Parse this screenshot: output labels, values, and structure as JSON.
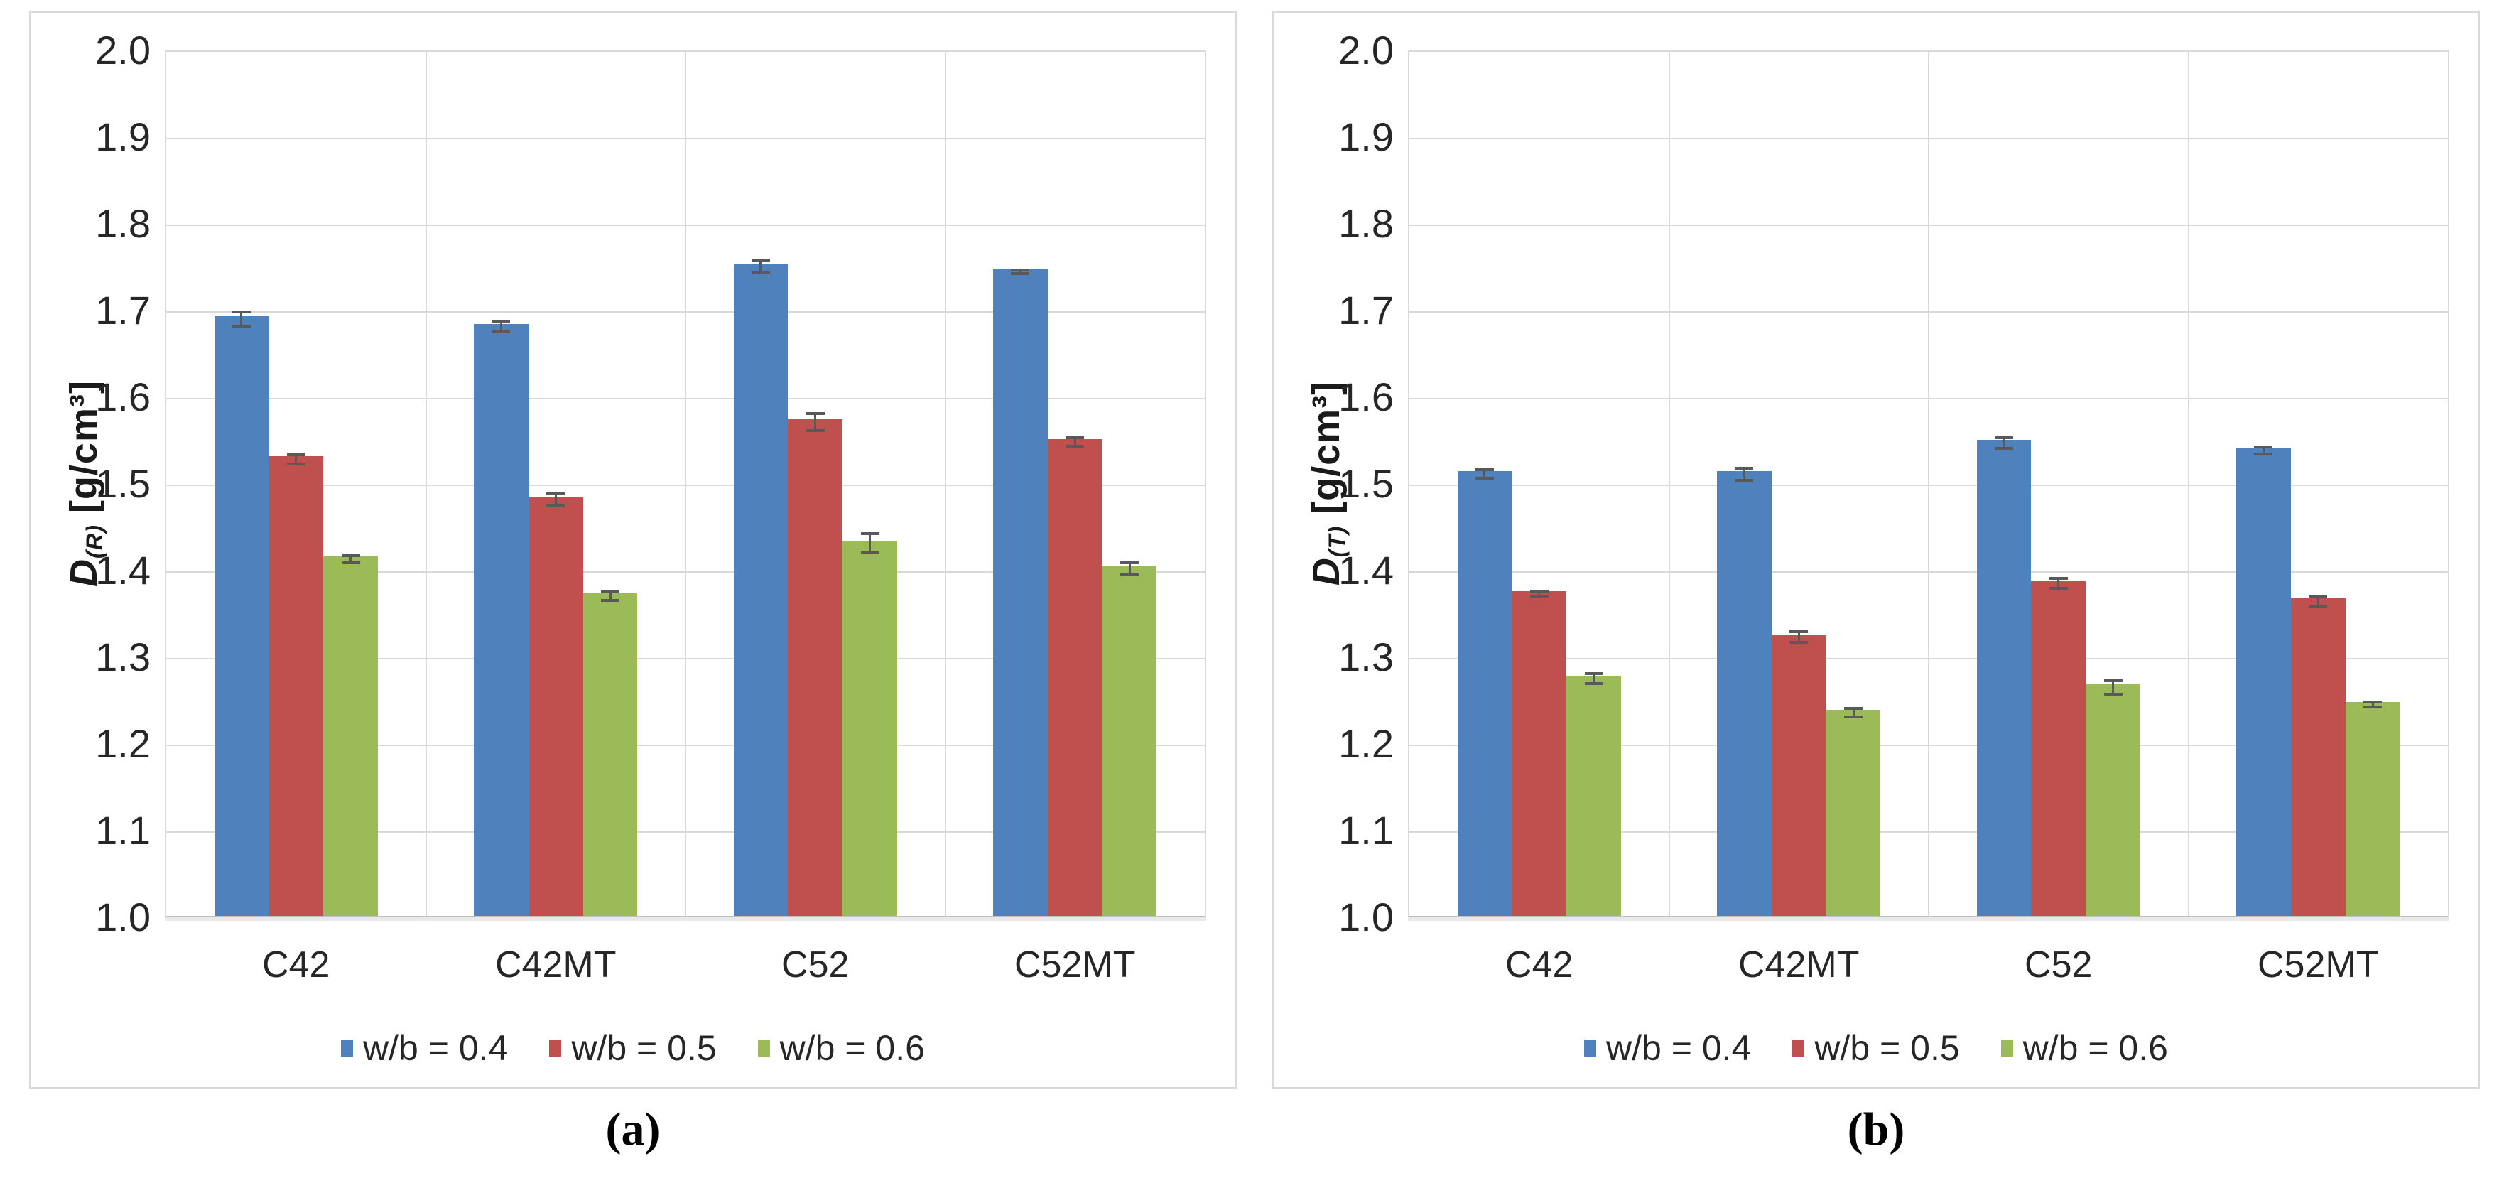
{
  "style": {
    "series_colors": [
      "#4F81BD",
      "#C0504D",
      "#9BBB59"
    ],
    "error_bar_color": "#595959",
    "grid_color": "#D9D9D9",
    "axis_color": "#BFBFBF",
    "text_color": "#262626",
    "panel_border_color": "#D9D9D9",
    "background": "#FFFFFF"
  },
  "chart_data": [
    {
      "type": "bar",
      "panel_caption": "(a)",
      "title": "",
      "xlabel": "",
      "ylabel_text": "D(R) [g/cm³]",
      "ylabel": {
        "symbol": "D",
        "subscript": "(R)",
        "units": "[g/cm³]"
      },
      "ylim": [
        1.0,
        2.0
      ],
      "y_tick_step": 0.1,
      "y_ticks": [
        "2.0",
        "1.9",
        "1.8",
        "1.7",
        "1.6",
        "1.5",
        "1.4",
        "1.3",
        "1.2",
        "1.1",
        "1.0"
      ],
      "grid": true,
      "legend_position": "bottom",
      "categories": [
        "C42",
        "C42MT",
        "C52",
        "C52MT"
      ],
      "series": [
        {
          "name": "w/b = 0.4",
          "color": "#4F81BD",
          "values": [
            1.692,
            1.683,
            1.752,
            1.746
          ],
          "errors": [
            0.008,
            0.006,
            0.007,
            0.002
          ]
        },
        {
          "name": "w/b = 0.5",
          "color": "#C0504D",
          "values": [
            1.53,
            1.483,
            1.573,
            1.55
          ],
          "errors": [
            0.005,
            0.007,
            0.01,
            0.005
          ]
        },
        {
          "name": "w/b = 0.6",
          "color": "#9BBB59",
          "values": [
            1.415,
            1.372,
            1.433,
            1.404
          ],
          "errors": [
            0.004,
            0.005,
            0.011,
            0.007
          ]
        }
      ]
    },
    {
      "type": "bar",
      "panel_caption": "(b)",
      "title": "",
      "xlabel": "",
      "ylabel_text": "D(T) [g/cm³]",
      "ylabel": {
        "symbol": "D",
        "subscript": "(T)",
        "units": "[g/cm³]"
      },
      "ylim": [
        1.0,
        2.0
      ],
      "y_tick_step": 0.1,
      "y_ticks": [
        "2.0",
        "1.9",
        "1.8",
        "1.7",
        "1.6",
        "1.5",
        "1.4",
        "1.3",
        "1.2",
        "1.1",
        "1.0"
      ],
      "grid": true,
      "legend_position": "bottom",
      "categories": [
        "C42",
        "C42MT",
        "C52",
        "C52MT"
      ],
      "series": [
        {
          "name": "w/b = 0.4",
          "color": "#4F81BD",
          "values": [
            1.513,
            1.513,
            1.549,
            1.54
          ],
          "errors": [
            0.005,
            0.007,
            0.006,
            0.004
          ]
        },
        {
          "name": "w/b = 0.5",
          "color": "#C0504D",
          "values": [
            1.375,
            1.325,
            1.387,
            1.366
          ],
          "errors": [
            0.003,
            0.006,
            0.006,
            0.005
          ]
        },
        {
          "name": "w/b = 0.6",
          "color": "#9BBB59",
          "values": [
            1.277,
            1.238,
            1.267,
            1.247
          ],
          "errors": [
            0.006,
            0.005,
            0.008,
            0.003
          ]
        }
      ]
    }
  ]
}
